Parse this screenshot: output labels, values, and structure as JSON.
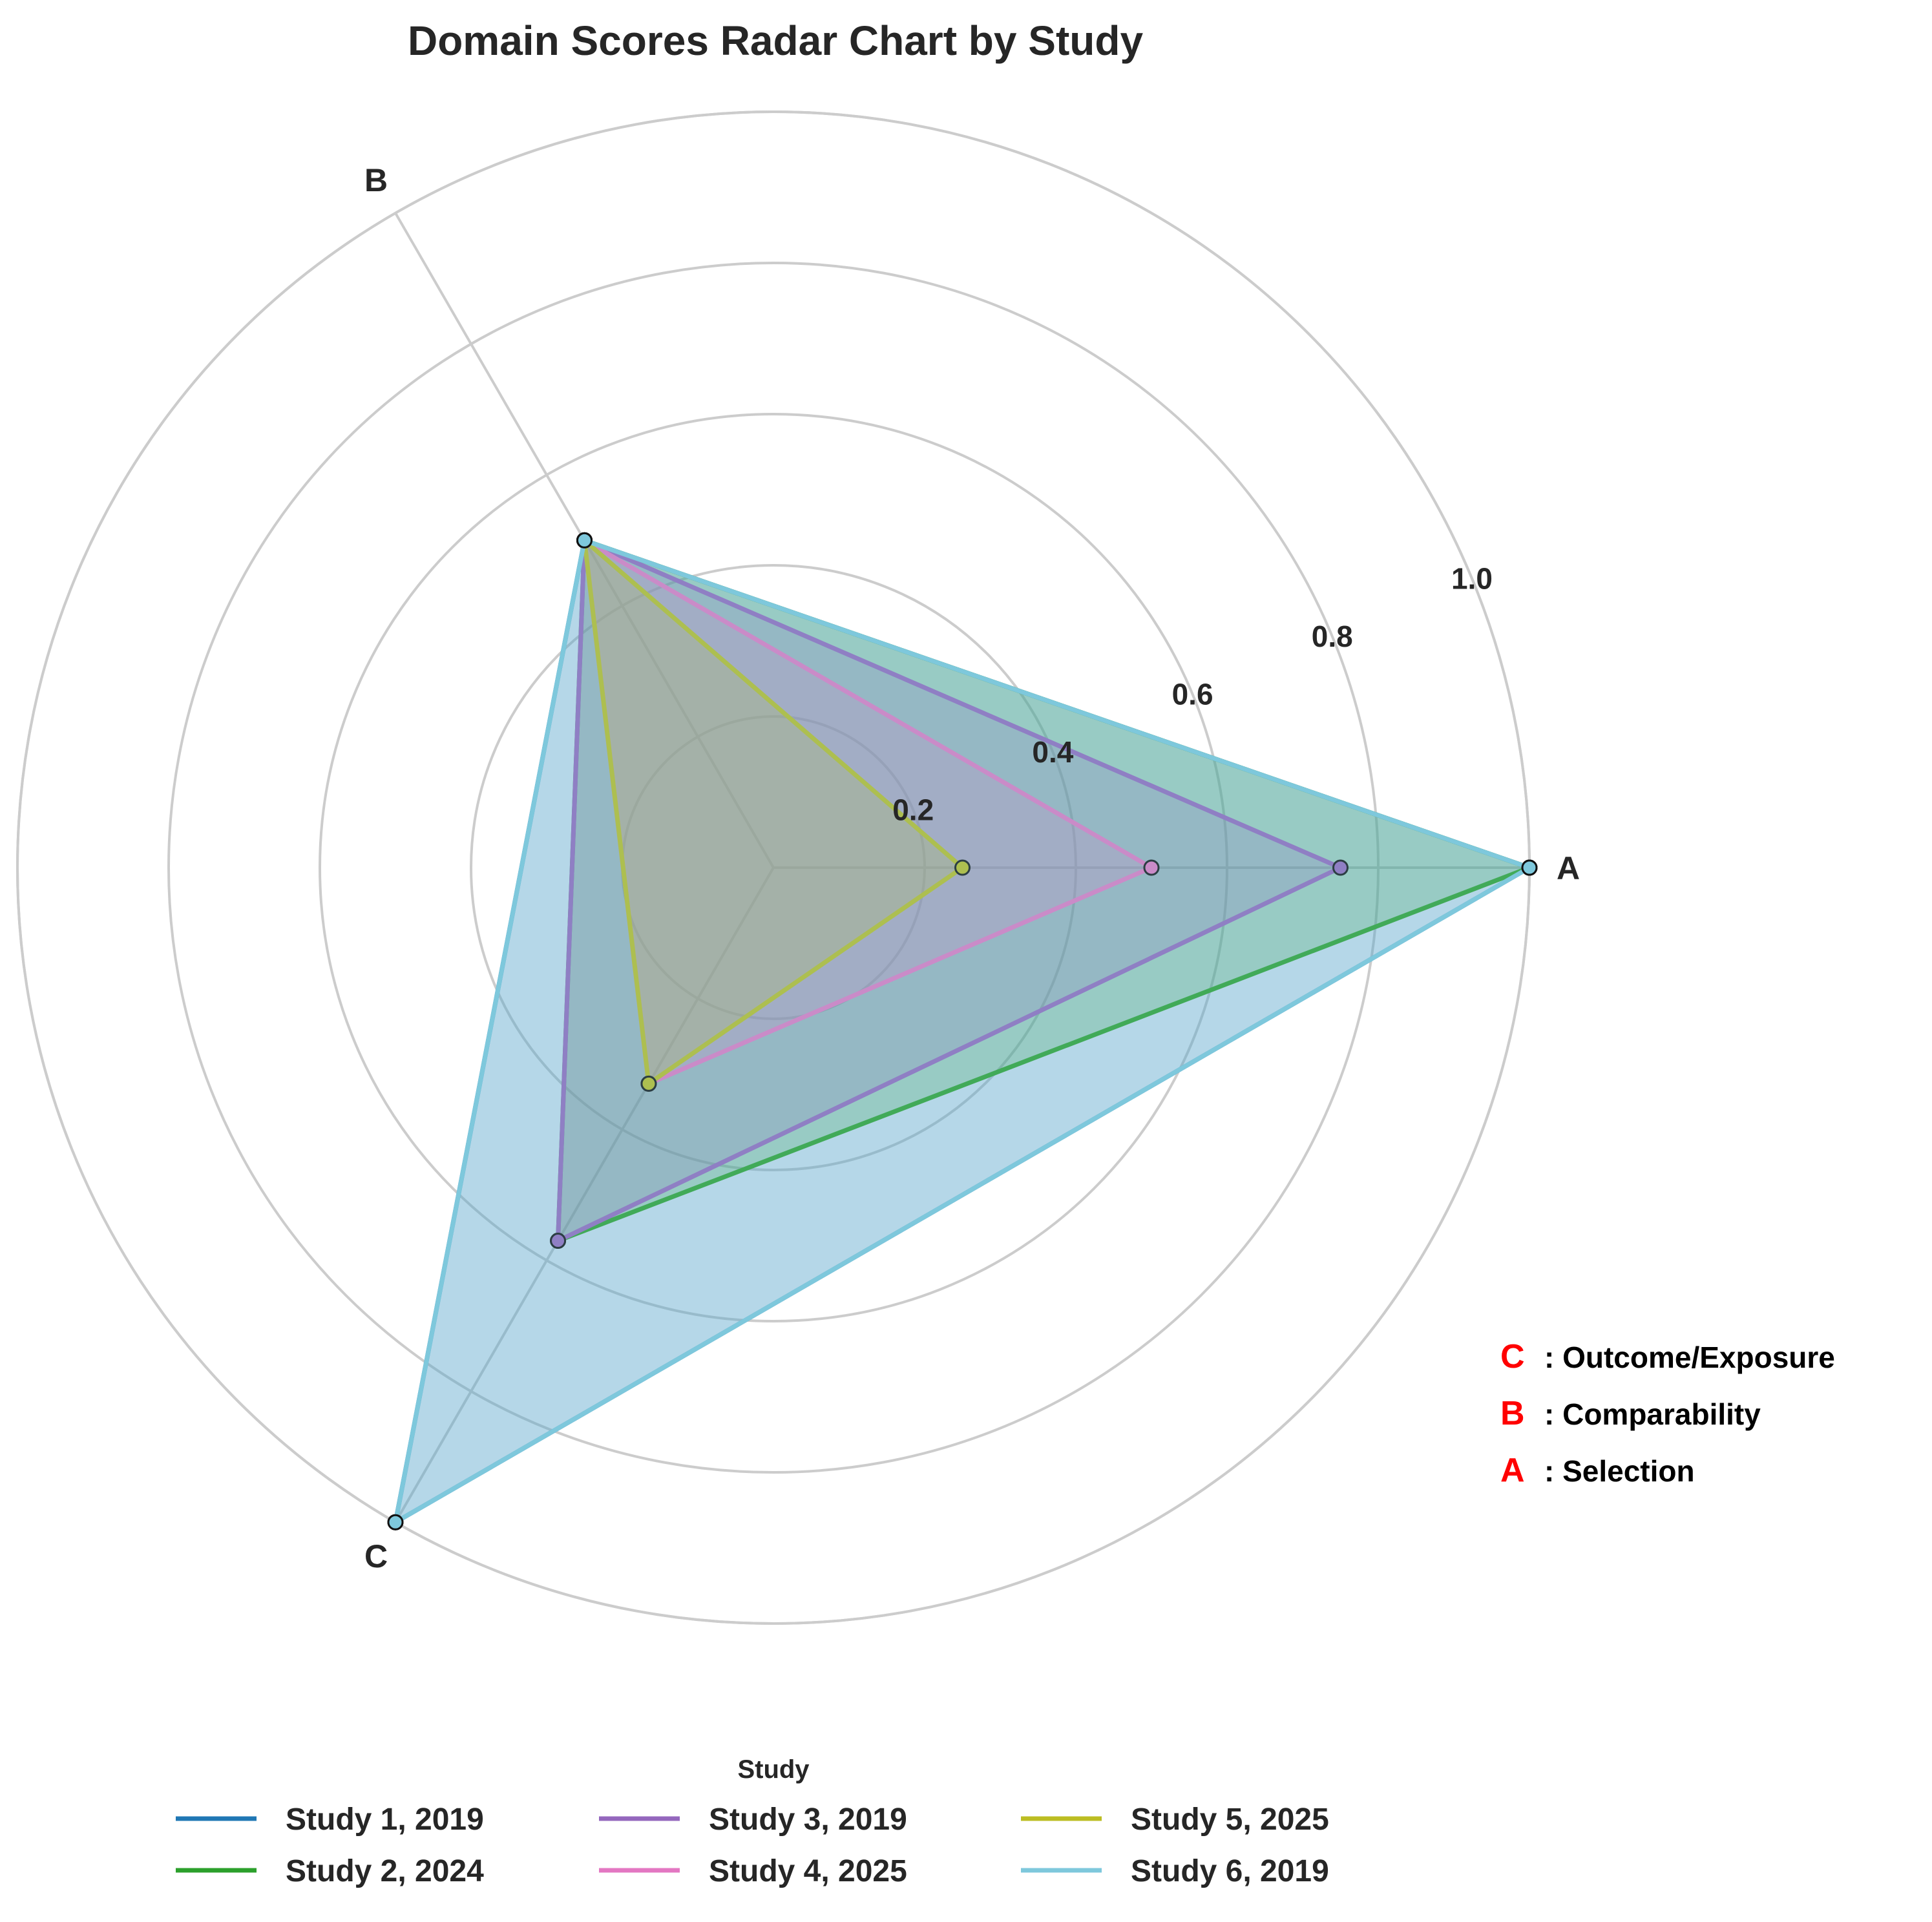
{
  "chart_data": {
    "type": "radar",
    "title": "Domain Scores Radar Chart by Study",
    "axes": [
      "A",
      "B",
      "C"
    ],
    "axis_key": [
      {
        "letter": "C",
        "text": ": Outcome/Exposure"
      },
      {
        "letter": "B",
        "text": ": Comparability"
      },
      {
        "letter": "A",
        "text": ": Selection"
      }
    ],
    "rlim": [
      0,
      1.0
    ],
    "rticks": [
      0.2,
      0.4,
      0.6,
      0.8,
      1.0
    ],
    "rtick_labels": [
      "0.2",
      "0.4",
      "0.6",
      "0.8",
      "1.0"
    ],
    "grid": true,
    "legend_title": "Study",
    "legend_placement": "bottom",
    "series": [
      {
        "name": "Study 1, 2019",
        "color": "#1f77b4",
        "values": [
          1.0,
          0.5,
          1.0
        ]
      },
      {
        "name": "Study 2, 2024",
        "color": "#2ca02c",
        "values": [
          1.0,
          0.5,
          0.57
        ]
      },
      {
        "name": "Study 3, 2019",
        "color": "#9467bd",
        "values": [
          0.75,
          0.5,
          0.57
        ]
      },
      {
        "name": "Study 4, 2025",
        "color": "#e377c2",
        "values": [
          0.5,
          0.5,
          0.33
        ]
      },
      {
        "name": "Study 5, 2025",
        "color": "#bcbd22",
        "values": [
          0.25,
          0.5,
          0.33
        ]
      },
      {
        "name": "Study 6, 2019",
        "color": "#7ec8dc",
        "values": [
          1.0,
          0.5,
          1.0
        ]
      }
    ]
  }
}
